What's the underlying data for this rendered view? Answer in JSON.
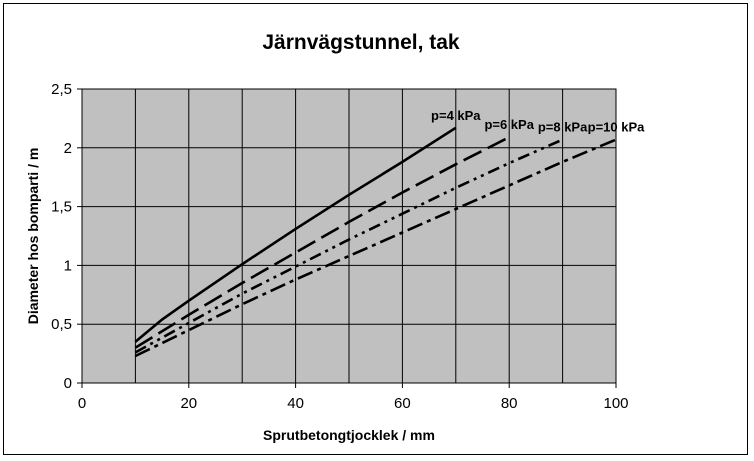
{
  "chart_data": {
    "type": "line",
    "title": "Järnvägstunnel, tak",
    "xlabel": "Sprutbetongtjocklek / mm",
    "ylabel": "Diameter hos bomparti  / m",
    "xlim": [
      0,
      100
    ],
    "ylim": [
      0,
      2.5
    ],
    "x_ticks": [
      "0",
      "20",
      "40",
      "60",
      "80",
      "100"
    ],
    "y_ticks": [
      "0",
      "0,5",
      "1",
      "1,5",
      "2",
      "2,5"
    ],
    "grid": true,
    "plot_background": "#c0c0c0",
    "line_color": "#000000",
    "series": [
      {
        "name": "p=4 kPa",
        "style": "solid",
        "x": [
          10,
          15,
          20,
          30,
          40,
          50,
          60,
          70
        ],
        "y": [
          0.35,
          0.54,
          0.7,
          1.01,
          1.31,
          1.6,
          1.88,
          2.17
        ]
      },
      {
        "name": "p=6 kPa",
        "style": "dash",
        "x": [
          10,
          20,
          30,
          40,
          50,
          60,
          70,
          80
        ],
        "y": [
          0.3,
          0.58,
          0.85,
          1.11,
          1.37,
          1.62,
          1.86,
          2.09
        ]
      },
      {
        "name": "p=8 kPa",
        "style": "dash-dot-dot",
        "x": [
          10,
          20,
          30,
          40,
          50,
          60,
          70,
          80,
          90
        ],
        "y": [
          0.26,
          0.51,
          0.76,
          0.99,
          1.22,
          1.44,
          1.66,
          1.87,
          2.07
        ]
      },
      {
        "name": "p=10 kPa",
        "style": "dash-dot",
        "x": [
          10,
          20,
          30,
          40,
          50,
          60,
          70,
          80,
          90,
          100
        ],
        "y": [
          0.23,
          0.45,
          0.67,
          0.88,
          1.08,
          1.28,
          1.48,
          1.68,
          1.88,
          2.07
        ]
      }
    ]
  }
}
